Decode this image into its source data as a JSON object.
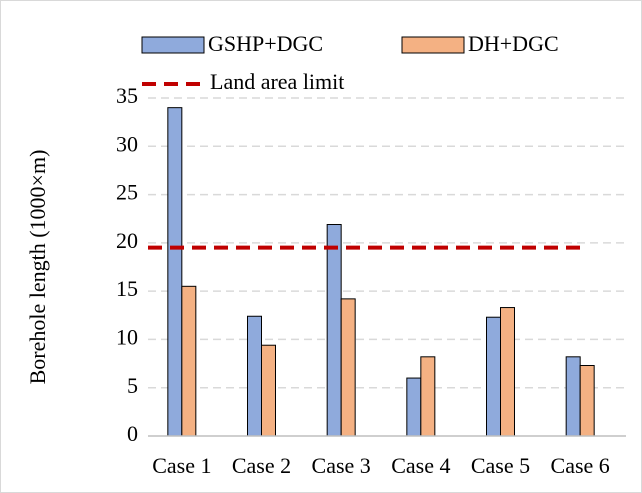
{
  "chart_data": {
    "type": "bar",
    "y_label": "Borehole length (1000×m)",
    "categories": [
      "Case 1",
      "Case 2",
      "Case 3",
      "Case 4",
      "Case 5",
      "Case 6"
    ],
    "series": [
      {
        "name": "GSHP+DGC",
        "color": "#8faadc",
        "values": [
          34,
          12.4,
          21.9,
          6,
          12.3,
          8.2
        ]
      },
      {
        "name": "DH+DGC",
        "color": "#f4b183",
        "values": [
          15.5,
          9.4,
          14.2,
          8.2,
          13.3,
          7.3
        ]
      }
    ],
    "reference_line": {
      "name": "Land area limit",
      "value": 19.5,
      "color": "#c00000"
    },
    "ylim": [
      0,
      35
    ],
    "yticks": [
      0,
      5,
      10,
      15,
      20,
      25,
      30,
      35
    ],
    "grid": true
  }
}
